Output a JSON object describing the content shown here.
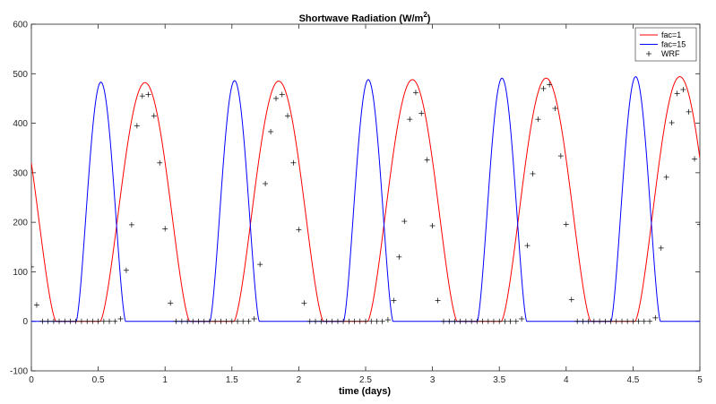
{
  "chart_data": {
    "type": "line",
    "title_main": "Shortwave Radiation (W/m",
    "title_sup": "2",
    "title_tail": ")",
    "xlabel": "time (days)",
    "ylabel": "",
    "xlim": [
      0,
      5
    ],
    "ylim": [
      -100,
      600
    ],
    "xticks": [
      0,
      0.5,
      1,
      1.5,
      2,
      2.5,
      3,
      3.5,
      4,
      4.5,
      5
    ],
    "xtick_labels": [
      "0",
      "0.5",
      "1",
      "1.5",
      "2",
      "2.5",
      "3",
      "3.5",
      "4",
      "4.5",
      "5"
    ],
    "yticks": [
      -100,
      0,
      100,
      200,
      300,
      400,
      500,
      600
    ],
    "ytick_labels": [
      "-100",
      "0",
      "100",
      "200",
      "300",
      "400",
      "500",
      "600"
    ],
    "grid": false,
    "legend_position": "top-right",
    "series": [
      {
        "name": "fac=1",
        "style": "line",
        "color": "#ff0000",
        "peak_x": [
          -0.15,
          0.85,
          1.85,
          2.85,
          3.85,
          4.85
        ],
        "peak_y": [
          480,
          482,
          485,
          488,
          491,
          494
        ],
        "half_width": 0.335
      },
      {
        "name": "fac=15",
        "style": "line",
        "color": "#0000ff",
        "peak_x": [
          0.52,
          1.52,
          2.52,
          3.52,
          4.52
        ],
        "peak_y": [
          483,
          486,
          488,
          491,
          494
        ],
        "half_width": 0.185
      },
      {
        "name": "WRF",
        "style": "marker",
        "marker": "plus",
        "color": "#000000",
        "points": [
          [
            0.0,
            110
          ],
          [
            0.04,
            33
          ],
          [
            0.083,
            0
          ],
          [
            0.125,
            0
          ],
          [
            0.167,
            0
          ],
          [
            0.208,
            0
          ],
          [
            0.25,
            0
          ],
          [
            0.292,
            0
          ],
          [
            0.333,
            0
          ],
          [
            0.375,
            0
          ],
          [
            0.417,
            0
          ],
          [
            0.458,
            0
          ],
          [
            0.5,
            0
          ],
          [
            0.542,
            0
          ],
          [
            0.583,
            0
          ],
          [
            0.625,
            0
          ],
          [
            0.667,
            5
          ],
          [
            0.71,
            103
          ],
          [
            0.75,
            195
          ],
          [
            0.79,
            395
          ],
          [
            0.83,
            455
          ],
          [
            0.875,
            458
          ],
          [
            0.917,
            415
          ],
          [
            0.96,
            320
          ],
          [
            1.0,
            187
          ],
          [
            1.04,
            37
          ],
          [
            1.083,
            0
          ],
          [
            1.125,
            0
          ],
          [
            1.167,
            0
          ],
          [
            1.208,
            0
          ],
          [
            1.25,
            0
          ],
          [
            1.292,
            0
          ],
          [
            1.333,
            0
          ],
          [
            1.375,
            0
          ],
          [
            1.417,
            0
          ],
          [
            1.458,
            0
          ],
          [
            1.5,
            0
          ],
          [
            1.542,
            0
          ],
          [
            1.583,
            0
          ],
          [
            1.625,
            0
          ],
          [
            1.667,
            5
          ],
          [
            1.71,
            115
          ],
          [
            1.75,
            278
          ],
          [
            1.79,
            383
          ],
          [
            1.83,
            450
          ],
          [
            1.875,
            458
          ],
          [
            1.917,
            415
          ],
          [
            1.96,
            320
          ],
          [
            2.0,
            185
          ],
          [
            2.04,
            37
          ],
          [
            2.083,
            0
          ],
          [
            2.125,
            0
          ],
          [
            2.167,
            0
          ],
          [
            2.208,
            0
          ],
          [
            2.25,
            0
          ],
          [
            2.292,
            0
          ],
          [
            2.333,
            0
          ],
          [
            2.375,
            0
          ],
          [
            2.417,
            0
          ],
          [
            2.458,
            0
          ],
          [
            2.5,
            0
          ],
          [
            2.542,
            0
          ],
          [
            2.583,
            0
          ],
          [
            2.625,
            0
          ],
          [
            2.667,
            3
          ],
          [
            2.71,
            42
          ],
          [
            2.75,
            130
          ],
          [
            2.79,
            202
          ],
          [
            2.83,
            408
          ],
          [
            2.875,
            462
          ],
          [
            2.917,
            420
          ],
          [
            2.96,
            326
          ],
          [
            3.0,
            193
          ],
          [
            3.04,
            42
          ],
          [
            3.083,
            0
          ],
          [
            3.125,
            0
          ],
          [
            3.167,
            0
          ],
          [
            3.208,
            0
          ],
          [
            3.25,
            0
          ],
          [
            3.292,
            0
          ],
          [
            3.333,
            0
          ],
          [
            3.375,
            0
          ],
          [
            3.417,
            0
          ],
          [
            3.458,
            0
          ],
          [
            3.5,
            0
          ],
          [
            3.542,
            0
          ],
          [
            3.583,
            0
          ],
          [
            3.625,
            0
          ],
          [
            3.667,
            5
          ],
          [
            3.71,
            153
          ],
          [
            3.75,
            298
          ],
          [
            3.79,
            408
          ],
          [
            3.83,
            470
          ],
          [
            3.875,
            478
          ],
          [
            3.917,
            430
          ],
          [
            3.96,
            334
          ],
          [
            4.0,
            196
          ],
          [
            4.04,
            44
          ],
          [
            4.083,
            0
          ],
          [
            4.125,
            0
          ],
          [
            4.167,
            0
          ],
          [
            4.208,
            0
          ],
          [
            4.25,
            0
          ],
          [
            4.292,
            0
          ],
          [
            4.333,
            0
          ],
          [
            4.375,
            0
          ],
          [
            4.417,
            0
          ],
          [
            4.458,
            0
          ],
          [
            4.5,
            0
          ],
          [
            4.542,
            0
          ],
          [
            4.583,
            0
          ],
          [
            4.625,
            0
          ],
          [
            4.667,
            7
          ],
          [
            4.71,
            148
          ],
          [
            4.75,
            291
          ],
          [
            4.79,
            401
          ],
          [
            4.83,
            460
          ],
          [
            4.875,
            468
          ],
          [
            4.917,
            423
          ],
          [
            4.96,
            328
          ],
          [
            5.0,
            196
          ]
        ]
      }
    ]
  }
}
